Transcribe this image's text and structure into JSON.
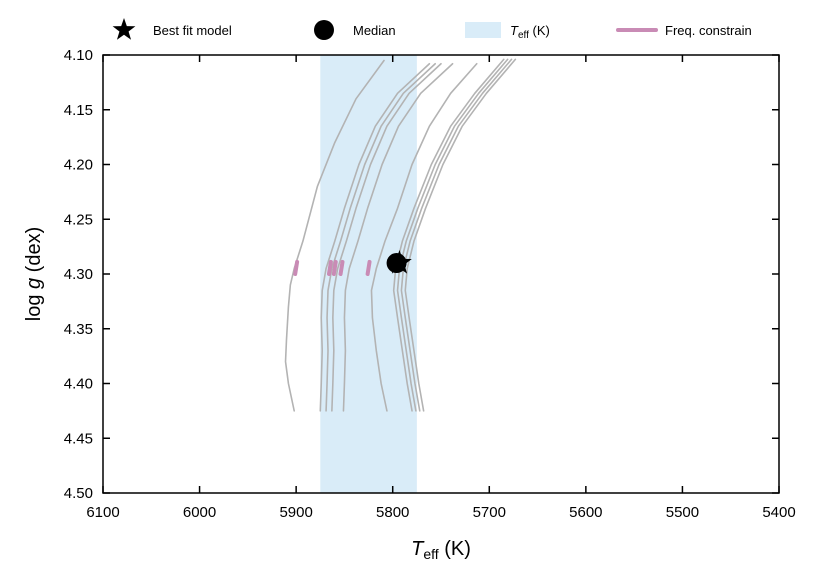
{
  "chart_data": {
    "type": "line",
    "xlabel": {
      "main": "T",
      "sub": "eff",
      "unit": " (K)"
    },
    "ylabel": {
      "pre": "log ",
      "italic": "g",
      "post": " (dex)"
    },
    "xlim": [
      6100,
      5400
    ],
    "ylim": [
      4.1,
      4.5
    ],
    "x_reversed": true,
    "y_reversed": true,
    "x_ticks": [
      6100,
      6000,
      5900,
      5800,
      5700,
      5600,
      5500,
      5400
    ],
    "y_ticks": [
      "4.10",
      "4.15",
      "4.20",
      "4.25",
      "4.30",
      "4.35",
      "4.40",
      "4.45",
      "4.50"
    ],
    "legend": {
      "placement": "top",
      "items": [
        {
          "key": "best_fit",
          "label": "Best fit model",
          "marker": "star"
        },
        {
          "key": "median",
          "label": "Median",
          "marker": "circle"
        },
        {
          "key": "teff",
          "label_main": "T",
          "label_sub": "eff",
          "label_rest": " (K)",
          "marker": "band"
        },
        {
          "key": "freq",
          "label": "Freq. constrain",
          "marker": "line"
        }
      ]
    },
    "teff_band": {
      "x_min": 5775,
      "x_max": 5875,
      "color": "#d9ecf8"
    },
    "track_color": "#b3b3b3",
    "freq_color": "#c98bb5",
    "marker_color": "#000000",
    "best_fit": {
      "x": 5793,
      "y": 4.29
    },
    "median": {
      "x": 5796,
      "y": 4.29
    },
    "tracks": [
      {
        "points": [
          [
            5902,
            4.425
          ],
          [
            5908,
            4.4
          ],
          [
            5911,
            4.38
          ],
          [
            5910,
            4.36
          ],
          [
            5908,
            4.33
          ],
          [
            5906,
            4.31
          ],
          [
            5902,
            4.295
          ],
          [
            5893,
            4.27
          ],
          [
            5878,
            4.22
          ],
          [
            5860,
            4.18
          ],
          [
            5838,
            4.14
          ],
          [
            5809,
            4.105
          ]
        ]
      },
      {
        "points": [
          [
            5875,
            4.425
          ],
          [
            5874,
            4.4
          ],
          [
            5873,
            4.37
          ],
          [
            5874,
            4.34
          ],
          [
            5873,
            4.315
          ],
          [
            5869,
            4.295
          ],
          [
            5860,
            4.27
          ],
          [
            5850,
            4.24
          ],
          [
            5835,
            4.2
          ],
          [
            5818,
            4.165
          ],
          [
            5795,
            4.135
          ],
          [
            5762,
            4.108
          ]
        ]
      },
      {
        "points": [
          [
            5869,
            4.425
          ],
          [
            5868,
            4.4
          ],
          [
            5867,
            4.37
          ],
          [
            5868,
            4.34
          ],
          [
            5867,
            4.315
          ],
          [
            5863,
            4.295
          ],
          [
            5854,
            4.27
          ],
          [
            5844,
            4.24
          ],
          [
            5829,
            4.2
          ],
          [
            5812,
            4.165
          ],
          [
            5789,
            4.135
          ],
          [
            5756,
            4.108
          ]
        ]
      },
      {
        "points": [
          [
            5863,
            4.425
          ],
          [
            5862,
            4.4
          ],
          [
            5861,
            4.37
          ],
          [
            5862,
            4.34
          ],
          [
            5861,
            4.315
          ],
          [
            5857,
            4.295
          ],
          [
            5848,
            4.27
          ],
          [
            5838,
            4.24
          ],
          [
            5823,
            4.2
          ],
          [
            5806,
            4.165
          ],
          [
            5783,
            4.135
          ],
          [
            5750,
            4.108
          ]
        ]
      },
      {
        "points": [
          [
            5851,
            4.425
          ],
          [
            5850,
            4.4
          ],
          [
            5849,
            4.37
          ],
          [
            5850,
            4.34
          ],
          [
            5849,
            4.315
          ],
          [
            5845,
            4.295
          ],
          [
            5836,
            4.27
          ],
          [
            5826,
            4.24
          ],
          [
            5811,
            4.2
          ],
          [
            5794,
            4.165
          ],
          [
            5771,
            4.135
          ],
          [
            5738,
            4.108
          ]
        ]
      },
      {
        "points": [
          [
            5806,
            4.425
          ],
          [
            5812,
            4.4
          ],
          [
            5817,
            4.37
          ],
          [
            5821,
            4.34
          ],
          [
            5822,
            4.315
          ],
          [
            5817,
            4.295
          ],
          [
            5808,
            4.27
          ],
          [
            5795,
            4.24
          ],
          [
            5780,
            4.2
          ],
          [
            5762,
            4.165
          ],
          [
            5740,
            4.135
          ],
          [
            5713,
            4.108
          ]
        ]
      },
      {
        "points": [
          [
            5780,
            4.425
          ],
          [
            5785,
            4.4
          ],
          [
            5790,
            4.37
          ],
          [
            5795,
            4.34
          ],
          [
            5799,
            4.315
          ],
          [
            5797,
            4.295
          ],
          [
            5790,
            4.27
          ],
          [
            5778,
            4.24
          ],
          [
            5760,
            4.2
          ],
          [
            5740,
            4.165
          ],
          [
            5715,
            4.135
          ],
          [
            5685,
            4.104
          ]
        ]
      },
      {
        "points": [
          [
            5776,
            4.425
          ],
          [
            5781,
            4.4
          ],
          [
            5786,
            4.37
          ],
          [
            5791,
            4.34
          ],
          [
            5795,
            4.315
          ],
          [
            5793,
            4.295
          ],
          [
            5786,
            4.27
          ],
          [
            5774,
            4.24
          ],
          [
            5756,
            4.2
          ],
          [
            5736,
            4.165
          ],
          [
            5711,
            4.135
          ],
          [
            5681,
            4.104
          ]
        ]
      },
      {
        "points": [
          [
            5772,
            4.425
          ],
          [
            5777,
            4.4
          ],
          [
            5782,
            4.37
          ],
          [
            5787,
            4.34
          ],
          [
            5791,
            4.315
          ],
          [
            5789,
            4.295
          ],
          [
            5782,
            4.27
          ],
          [
            5770,
            4.24
          ],
          [
            5752,
            4.2
          ],
          [
            5732,
            4.165
          ],
          [
            5707,
            4.135
          ],
          [
            5677,
            4.104
          ]
        ]
      },
      {
        "points": [
          [
            5768,
            4.425
          ],
          [
            5773,
            4.4
          ],
          [
            5778,
            4.37
          ],
          [
            5783,
            4.34
          ],
          [
            5787,
            4.315
          ],
          [
            5785,
            4.295
          ],
          [
            5778,
            4.27
          ],
          [
            5766,
            4.24
          ],
          [
            5748,
            4.2
          ],
          [
            5728,
            4.165
          ],
          [
            5703,
            4.135
          ],
          [
            5673,
            4.104
          ]
        ]
      }
    ],
    "freq_segments": [
      {
        "points": [
          [
            5901,
            4.3
          ],
          [
            5899,
            4.289
          ]
        ]
      },
      {
        "points": [
          [
            5866,
            4.3
          ],
          [
            5864,
            4.289
          ]
        ]
      },
      {
        "points": [
          [
            5861,
            4.3
          ],
          [
            5859,
            4.289
          ]
        ]
      },
      {
        "points": [
          [
            5854,
            4.3
          ],
          [
            5852,
            4.289
          ]
        ]
      },
      {
        "points": [
          [
            5826,
            4.3
          ],
          [
            5824,
            4.289
          ]
        ]
      }
    ]
  }
}
